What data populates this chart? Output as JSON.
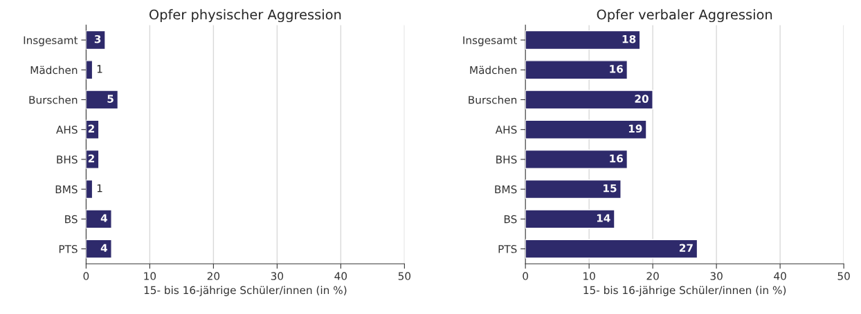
{
  "chart_data": [
    {
      "type": "bar",
      "orientation": "horizontal",
      "title": "Opfer physischer Aggression",
      "xlabel": "15- bis 16-jährige Schüler/innen (in %)",
      "categories": [
        "Insgesamt",
        "Mädchen",
        "Burschen",
        "AHS",
        "BHS",
        "BMS",
        "BS",
        "PTS"
      ],
      "values": [
        3,
        1,
        5,
        2,
        2,
        1,
        4,
        4
      ],
      "color": "#2e2a6b",
      "data_labels": true,
      "xlim": [
        0,
        50
      ],
      "xticks": [
        0,
        10,
        20,
        30,
        40,
        50
      ],
      "grid": "x"
    },
    {
      "type": "bar",
      "orientation": "horizontal",
      "title": "Opfer verbaler Aggression",
      "xlabel": "15- bis 16-jährige Schüler/innen (in %)",
      "categories": [
        "Insgesamt",
        "Mädchen",
        "Burschen",
        "AHS",
        "BHS",
        "BMS",
        "BS",
        "PTS"
      ],
      "values": [
        18,
        16,
        20,
        19,
        16,
        15,
        14,
        27
      ],
      "color": "#2e2a6b",
      "data_labels": true,
      "xlim": [
        0,
        50
      ],
      "xticks": [
        0,
        10,
        20,
        30,
        40,
        50
      ],
      "grid": "x"
    }
  ]
}
